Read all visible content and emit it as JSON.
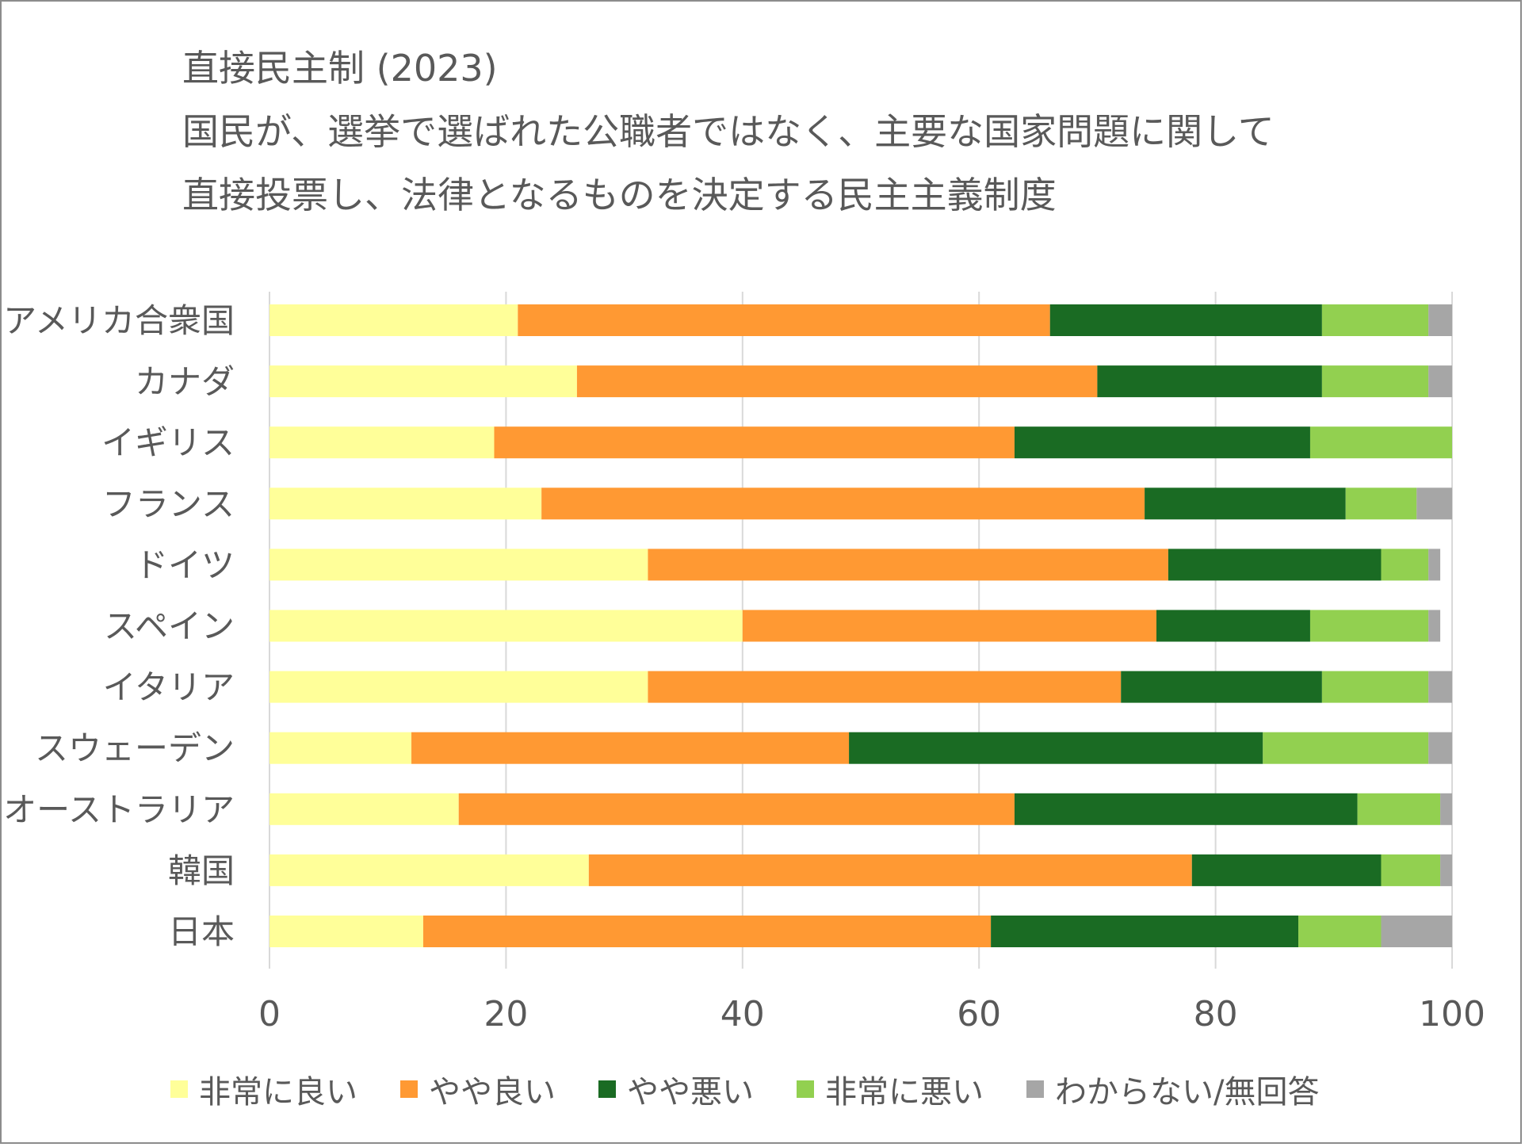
{
  "chart_data": {
    "type": "bar",
    "orientation": "horizontal",
    "stacked": true,
    "title": "直接民主制 (2023)",
    "subtitle": [
      "国民が、選挙で選ばれた公職者ではなく、主要な国家問題に関して",
      "直接投票し、法律となるものを決定する民主主義制度"
    ],
    "xlabel": "",
    "ylabel": "",
    "xlim": [
      0,
      100
    ],
    "xticks": [
      0,
      20,
      40,
      60,
      80,
      100
    ],
    "xtick_labels": [
      "0",
      "20",
      "40",
      "60",
      "80",
      "100"
    ],
    "grid": true,
    "legend_position": "bottom",
    "categories": [
      "アメリカ合衆国",
      "カナダ",
      "イギリス",
      "フランス",
      "ドイツ",
      "スペイン",
      "イタリア",
      "スウェーデン",
      "オーストラリア",
      "韓国",
      "日本"
    ],
    "series": [
      {
        "name": "非常に良い",
        "color": "#FFFF99",
        "values": [
          21,
          26,
          19,
          23,
          32,
          40,
          32,
          12,
          16,
          27,
          13
        ]
      },
      {
        "name": "やや良い",
        "color": "#FF9933",
        "values": [
          45,
          44,
          44,
          51,
          44,
          35,
          40,
          37,
          47,
          51,
          48
        ]
      },
      {
        "name": "やや悪い",
        "color": "#1A6B23",
        "values": [
          23,
          19,
          25,
          17,
          18,
          13,
          17,
          35,
          29,
          16,
          26
        ]
      },
      {
        "name": "非常に悪い",
        "color": "#92D050",
        "values": [
          9,
          9,
          12,
          6,
          4,
          10,
          9,
          14,
          7,
          5,
          7
        ]
      },
      {
        "name": "わからない/無回答",
        "color": "#A6A6A6",
        "values": [
          2,
          2,
          0,
          3,
          1,
          1,
          2,
          2,
          1,
          1,
          6
        ]
      }
    ]
  }
}
